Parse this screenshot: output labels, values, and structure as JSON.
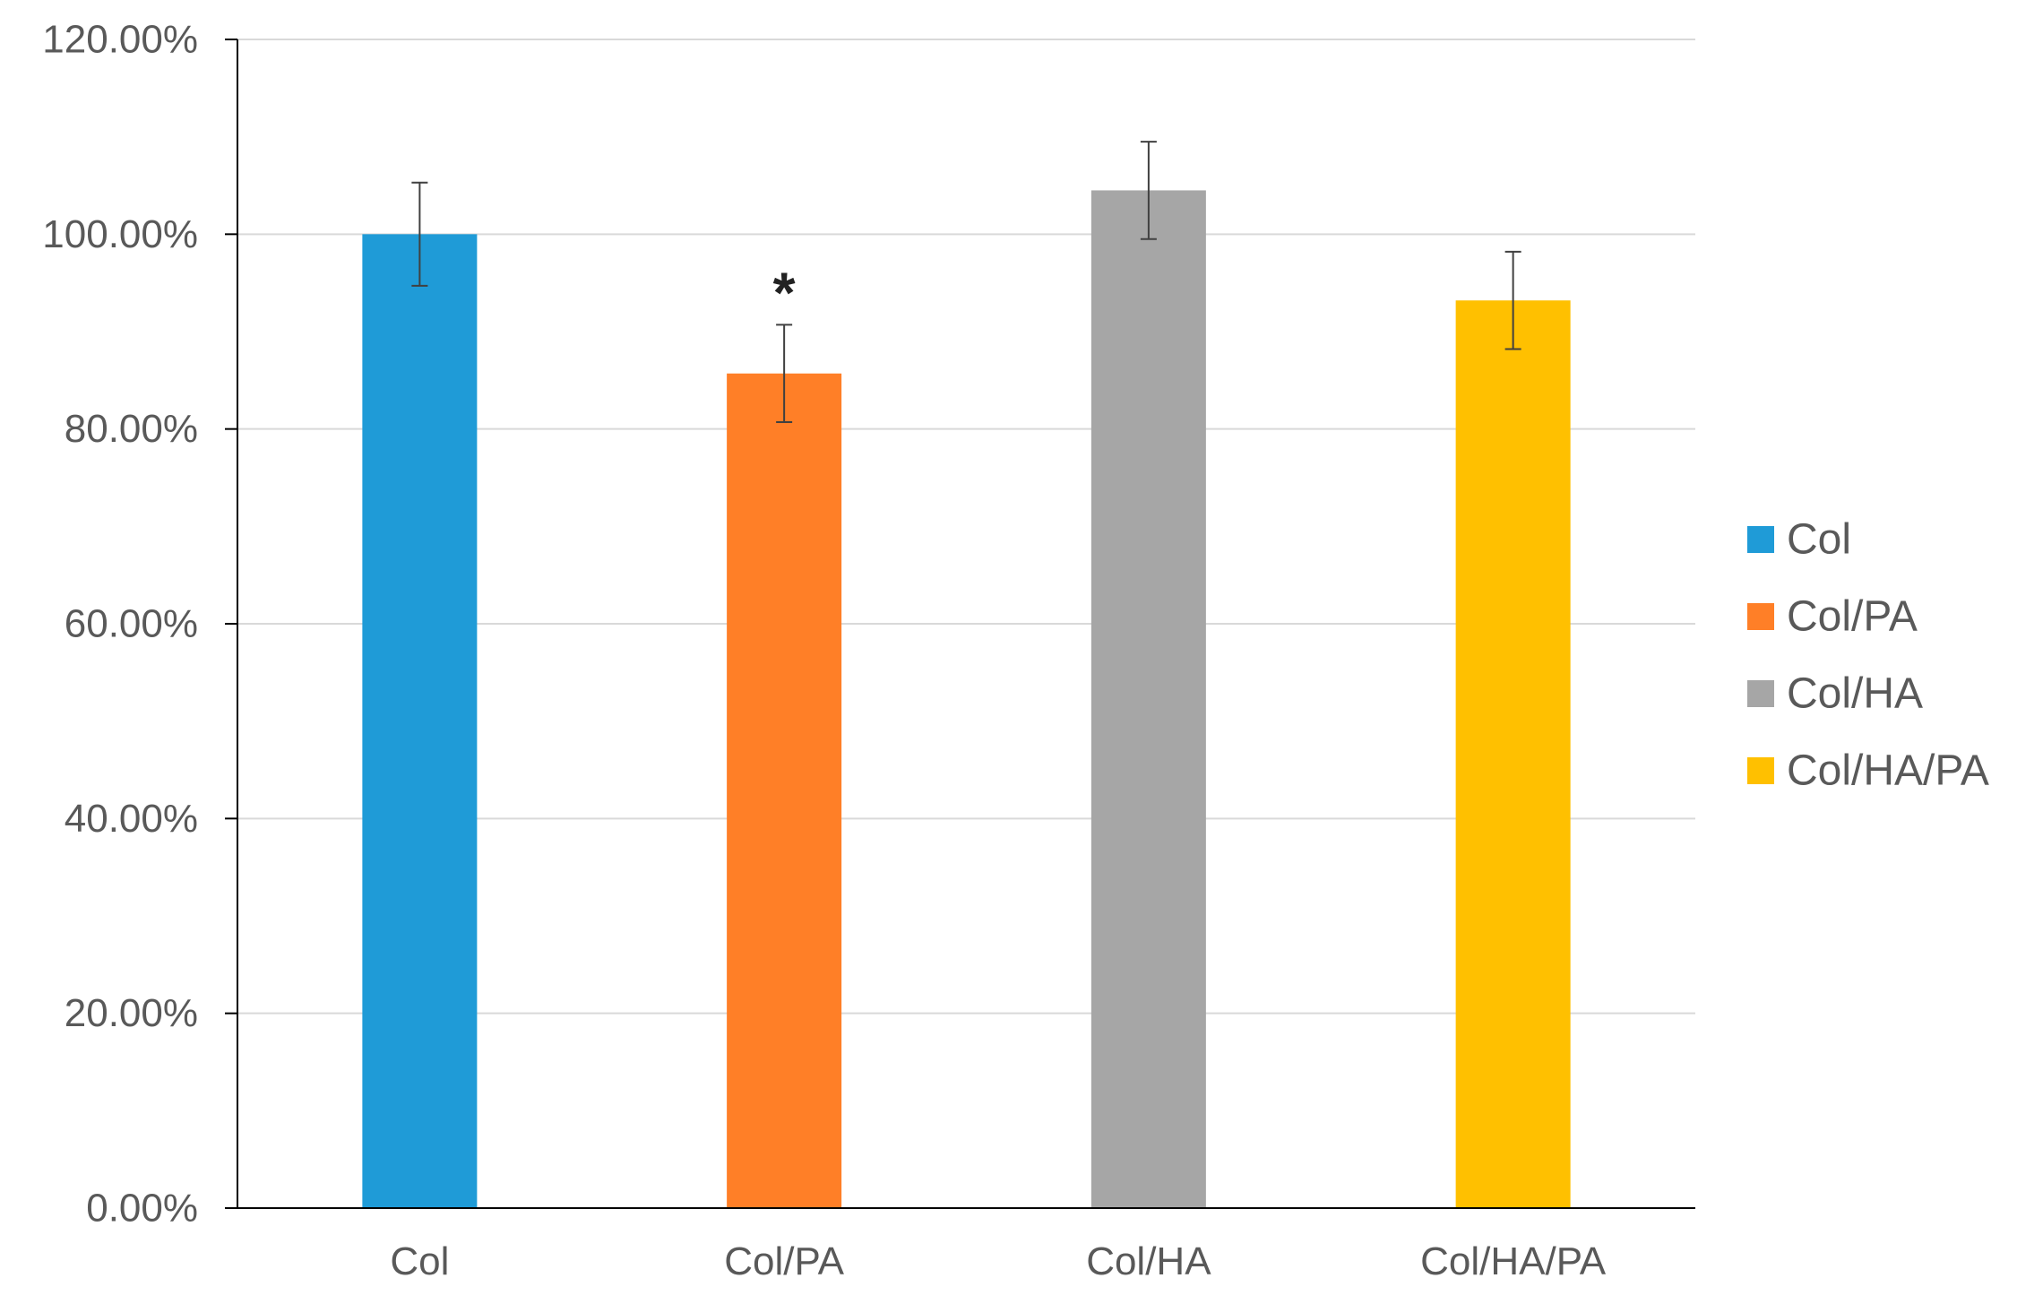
{
  "chart_data": {
    "type": "bar",
    "title": "",
    "xlabel": "",
    "ylabel": "",
    "categories": [
      "Col",
      "Col/PA",
      "Col/HA",
      "Col/HA/PA"
    ],
    "values": [
      1.0,
      0.857,
      1.045,
      0.932
    ],
    "error": [
      0.053,
      0.05,
      0.05,
      0.05
    ],
    "colors": [
      "#1F9BD7",
      "#FF7F27",
      "#A6A6A6",
      "#FFC000"
    ],
    "ylim": [
      0,
      1.2
    ],
    "yticks": [
      0,
      0.2,
      0.4,
      0.6,
      0.8,
      1.0,
      1.2
    ],
    "ytick_labels": [
      "0.00%",
      "20.00%",
      "40.00%",
      "60.00%",
      "80.00%",
      "100.00%",
      "120.00%"
    ],
    "grid": true,
    "legend": {
      "position": "right",
      "entries": [
        "Col",
        "Col/PA",
        "Col/HA",
        "Col/HA/PA"
      ]
    },
    "annotations": [
      {
        "category": "Col/PA",
        "text": "*"
      }
    ]
  }
}
